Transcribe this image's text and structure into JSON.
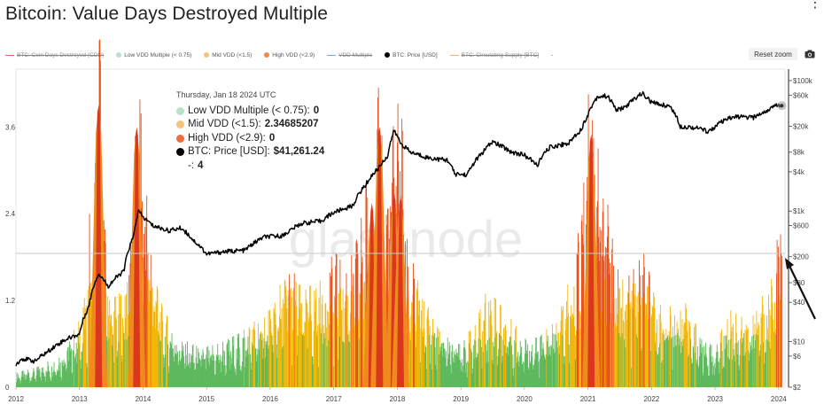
{
  "title": "Bitcoin: Value Days Destroyed Multiple",
  "menu_glyph": "⋮",
  "legend": [
    {
      "label": "BTC: Coin Days Destroyed (CDD)",
      "color": "#e06666",
      "kind": "line",
      "hidden": true
    },
    {
      "label": "Low VDD Multiple (< 0.75)",
      "color": "#b7e1cd",
      "kind": "dot",
      "hidden": false
    },
    {
      "label": "Mid VDD (<1.5)",
      "color": "#f6c27a",
      "kind": "dot",
      "hidden": false
    },
    {
      "label": "High VDD (<2.9)",
      "color": "#f08a4b",
      "kind": "dot",
      "hidden": false
    },
    {
      "label": "VDD Multiple",
      "color": "#6fa8dc",
      "kind": "line",
      "hidden": true
    },
    {
      "label": "BTC: Price [USD]",
      "color": "#000000",
      "kind": "dot",
      "hidden": false
    },
    {
      "label": "BTC: Circulating Supply [BTC]",
      "color": "#f6b26b",
      "kind": "line",
      "hidden": true
    }
  ],
  "legend_extra": "-",
  "buttons": {
    "reset_zoom": "Reset zoom"
  },
  "watermark": "glassnode",
  "tooltip": {
    "date": "Thursday, Jan 18 2024 UTC",
    "rows": [
      {
        "label": "Low VDD Multiple (< 0.75):",
        "value": "0",
        "color": "#b7e1cd"
      },
      {
        "label": "Mid VDD (<1.5):",
        "value": "2.34685207",
        "color": "#f6c27a"
      },
      {
        "label": "High VDD (<2.9):",
        "value": "0",
        "color": "#f26b3a"
      },
      {
        "label": "BTC: Price [USD]:",
        "value": "$41,261.24",
        "color": "#000000"
      }
    ],
    "extra_label": "-:",
    "extra_value": "4"
  },
  "colors": {
    "low": "#5cb85c",
    "mid": "#f2b705",
    "high": "#e8501c",
    "high_core": "#d9381e",
    "price": "#000000",
    "ref_line": "#c9c9c9"
  },
  "chart_data": {
    "type": "area",
    "x_ticks": [
      "2012",
      "2013",
      "2014",
      "2015",
      "2016",
      "2017",
      "2018",
      "2019",
      "2020",
      "2021",
      "2022",
      "2023",
      "2024"
    ],
    "xlim": [
      2012.0,
      2024.1
    ],
    "left_axis": {
      "ticks": [
        0,
        1.2,
        2.4,
        3.6
      ],
      "tick_labels": [
        "0",
        "1.2",
        "2.4",
        "3.6"
      ],
      "ylim": [
        0,
        4.4
      ]
    },
    "right_axis": {
      "scale": "log",
      "ticks": [
        2,
        6,
        10,
        40,
        80,
        200,
        600,
        1000,
        4000,
        8000,
        20000,
        60000,
        100000
      ],
      "tick_labels": [
        "$2",
        "$6",
        "$10",
        "$40",
        "$80",
        "$200",
        "$600",
        "$1k",
        "$4k",
        "$8k",
        "$20k",
        "$60k",
        "$100k"
      ],
      "ylim": [
        2,
        150000
      ]
    },
    "reference_line": {
      "axis": "left",
      "value": 1.85
    },
    "hover_date": 2024.05,
    "vdd_keypoints": [
      [
        2012.0,
        0.15
      ],
      [
        2012.3,
        0.2
      ],
      [
        2012.6,
        0.3
      ],
      [
        2012.8,
        0.45
      ],
      [
        2013.0,
        0.7
      ],
      [
        2013.1,
        1.0
      ],
      [
        2013.15,
        1.8
      ],
      [
        2013.2,
        1.2
      ],
      [
        2013.3,
        3.9
      ],
      [
        2013.4,
        1.5
      ],
      [
        2013.5,
        0.9
      ],
      [
        2013.7,
        1.0
      ],
      [
        2013.85,
        2.0
      ],
      [
        2013.9,
        3.3
      ],
      [
        2014.0,
        2.5
      ],
      [
        2014.1,
        1.6
      ],
      [
        2014.3,
        0.8
      ],
      [
        2014.6,
        0.5
      ],
      [
        2014.9,
        0.4
      ],
      [
        2015.2,
        0.45
      ],
      [
        2015.5,
        0.55
      ],
      [
        2015.8,
        0.7
      ],
      [
        2016.0,
        0.8
      ],
      [
        2016.3,
        1.3
      ],
      [
        2016.5,
        1.0
      ],
      [
        2016.8,
        1.1
      ],
      [
        2017.0,
        1.4
      ],
      [
        2017.2,
        1.2
      ],
      [
        2017.4,
        1.6
      ],
      [
        2017.5,
        2.1
      ],
      [
        2017.65,
        1.6
      ],
      [
        2017.7,
        3.4
      ],
      [
        2017.8,
        1.8
      ],
      [
        2017.95,
        2.8
      ],
      [
        2018.05,
        3.0
      ],
      [
        2018.15,
        1.5
      ],
      [
        2018.4,
        0.9
      ],
      [
        2018.7,
        0.6
      ],
      [
        2018.9,
        0.5
      ],
      [
        2019.2,
        0.6
      ],
      [
        2019.4,
        1.0
      ],
      [
        2019.55,
        0.9
      ],
      [
        2019.9,
        0.6
      ],
      [
        2020.2,
        0.5
      ],
      [
        2020.5,
        0.7
      ],
      [
        2020.8,
        1.3
      ],
      [
        2020.95,
        2.4
      ],
      [
        2021.05,
        3.6
      ],
      [
        2021.15,
        2.6
      ],
      [
        2021.3,
        1.9
      ],
      [
        2021.5,
        1.1
      ],
      [
        2021.7,
        1.2
      ],
      [
        2021.9,
        1.4
      ],
      [
        2022.0,
        1.0
      ],
      [
        2022.2,
        0.8
      ],
      [
        2022.5,
        0.9
      ],
      [
        2022.8,
        0.5
      ],
      [
        2023.0,
        0.4
      ],
      [
        2023.2,
        0.8
      ],
      [
        2023.5,
        0.7
      ],
      [
        2023.8,
        1.0
      ],
      [
        2024.0,
        1.6
      ],
      [
        2024.05,
        2.35
      ]
    ],
    "high_vdd_spikes": [
      {
        "x": 2013.3,
        "value": 3.9
      },
      {
        "x": 2013.9,
        "value": 3.6
      },
      {
        "x": 2017.6,
        "value": 2.55
      },
      {
        "x": 2017.72,
        "value": 3.6
      },
      {
        "x": 2017.95,
        "value": 2.7
      },
      {
        "x": 2018.05,
        "value": 2.65
      },
      {
        "x": 2021.05,
        "value": 3.5
      }
    ],
    "price_keypoints": [
      [
        2012.0,
        4.5
      ],
      [
        2012.1,
        5.5
      ],
      [
        2012.3,
        5
      ],
      [
        2012.5,
        7
      ],
      [
        2012.8,
        11
      ],
      [
        2013.0,
        13
      ],
      [
        2013.15,
        35
      ],
      [
        2013.3,
        110
      ],
      [
        2013.45,
        70
      ],
      [
        2013.7,
        120
      ],
      [
        2013.85,
        400
      ],
      [
        2013.93,
        1000
      ],
      [
        2014.0,
        800
      ],
      [
        2014.15,
        600
      ],
      [
        2014.4,
        500
      ],
      [
        2014.6,
        550
      ],
      [
        2014.8,
        350
      ],
      [
        2015.0,
        220
      ],
      [
        2015.3,
        240
      ],
      [
        2015.6,
        250
      ],
      [
        2015.9,
        400
      ],
      [
        2016.2,
        420
      ],
      [
        2016.5,
        650
      ],
      [
        2016.8,
        700
      ],
      [
        2017.0,
        950
      ],
      [
        2017.3,
        1200
      ],
      [
        2017.5,
        2500
      ],
      [
        2017.7,
        4500
      ],
      [
        2017.85,
        7000
      ],
      [
        2017.95,
        17000
      ],
      [
        2018.05,
        11000
      ],
      [
        2018.2,
        8000
      ],
      [
        2018.5,
        6500
      ],
      [
        2018.8,
        6000
      ],
      [
        2018.9,
        3700
      ],
      [
        2019.1,
        3600
      ],
      [
        2019.35,
        8000
      ],
      [
        2019.5,
        11500
      ],
      [
        2019.8,
        8000
      ],
      [
        2020.0,
        7200
      ],
      [
        2020.2,
        5000
      ],
      [
        2020.4,
        9500
      ],
      [
        2020.7,
        11000
      ],
      [
        2020.9,
        18000
      ],
      [
        2021.0,
        30000
      ],
      [
        2021.15,
        57000
      ],
      [
        2021.3,
        58000
      ],
      [
        2021.45,
        35000
      ],
      [
        2021.6,
        40000
      ],
      [
        2021.85,
        64000
      ],
      [
        2022.0,
        46000
      ],
      [
        2022.3,
        40000
      ],
      [
        2022.45,
        20000
      ],
      [
        2022.7,
        19000
      ],
      [
        2022.9,
        16500
      ],
      [
        2023.1,
        23000
      ],
      [
        2023.3,
        28000
      ],
      [
        2023.6,
        27000
      ],
      [
        2023.8,
        34000
      ],
      [
        2024.0,
        43000
      ],
      [
        2024.05,
        41261
      ]
    ]
  }
}
